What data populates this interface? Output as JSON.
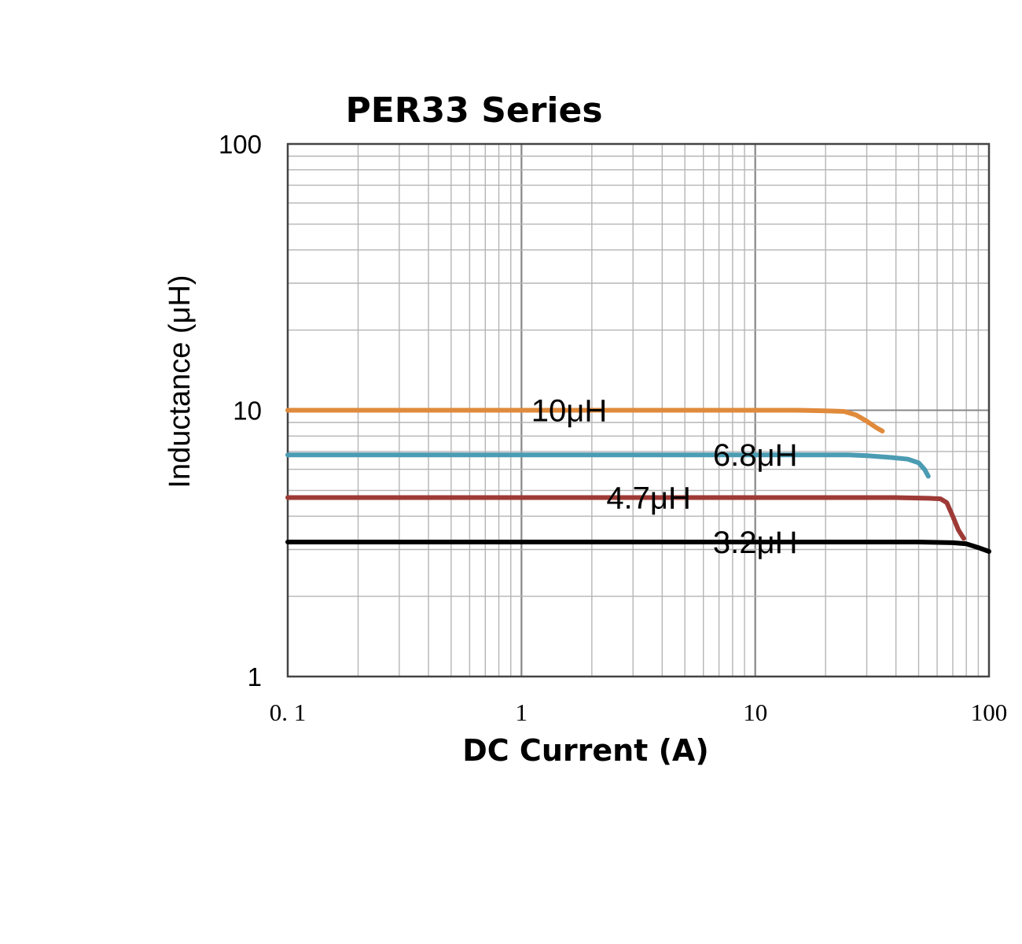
{
  "chart_data": {
    "type": "line",
    "title": "PER33  Series",
    "xlabel": "DC Current (A)",
    "ylabel": "Inductance (μH)",
    "xscale": "log",
    "yscale": "log",
    "xlim": [
      0.1,
      100
    ],
    "ylim": [
      1,
      100
    ],
    "grid": true,
    "x_ticks": [
      {
        "value": 0.1,
        "label": "0. 1"
      },
      {
        "value": 1,
        "label": "1"
      },
      {
        "value": 10,
        "label": "10"
      },
      {
        "value": 100,
        "label": "100"
      }
    ],
    "y_ticks": [
      {
        "value": 1,
        "label": "1"
      },
      {
        "value": 10,
        "label": "10"
      },
      {
        "value": 100,
        "label": "100"
      }
    ],
    "series": [
      {
        "name": "10μH",
        "color": "#e08a3c",
        "label_at": [
          1.6,
          10
        ],
        "x": [
          0.1,
          1,
          10,
          15,
          20,
          24,
          27,
          30,
          33,
          35
        ],
        "y": [
          10.0,
          10.0,
          10.0,
          10.0,
          9.95,
          9.9,
          9.6,
          9.1,
          8.6,
          8.35
        ]
      },
      {
        "name": "6.8μH",
        "color": "#4b9cb3",
        "label_at": [
          10,
          6.8
        ],
        "x": [
          0.1,
          1,
          10,
          25,
          30,
          38,
          45,
          50,
          53,
          55
        ],
        "y": [
          6.8,
          6.8,
          6.8,
          6.8,
          6.75,
          6.65,
          6.55,
          6.35,
          6.0,
          5.65
        ]
      },
      {
        "name": "4.7μH",
        "color": "#9e3a36",
        "label_at": [
          3.5,
          4.7
        ],
        "x": [
          0.1,
          1,
          10,
          40,
          55,
          62,
          66,
          70,
          74,
          78
        ],
        "y": [
          4.7,
          4.7,
          4.7,
          4.7,
          4.67,
          4.65,
          4.5,
          4.0,
          3.55,
          3.3
        ]
      },
      {
        "name": "3.2μH",
        "color": "#000000",
        "label_at": [
          10,
          3.2
        ],
        "x": [
          0.1,
          1,
          10,
          50,
          70,
          80,
          90,
          100
        ],
        "y": [
          3.2,
          3.2,
          3.2,
          3.2,
          3.18,
          3.15,
          3.05,
          2.95
        ]
      }
    ]
  }
}
